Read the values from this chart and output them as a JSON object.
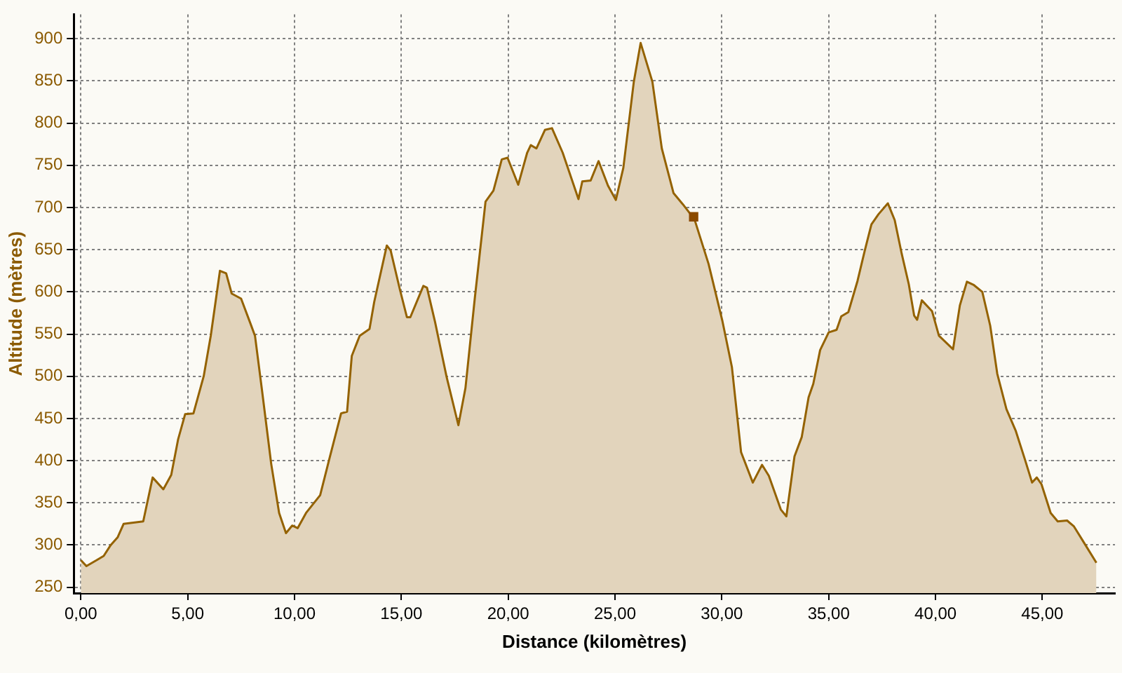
{
  "chart_data": {
    "type": "area",
    "xlabel": "Distance (kilomètres)",
    "ylabel": "Altitude (mètres)",
    "xlim": [
      -0.33,
      48.4
    ],
    "ylim": [
      243,
      929
    ],
    "xticks": [
      {
        "value": 0,
        "label": "0,00"
      },
      {
        "value": 5,
        "label": "5,00"
      },
      {
        "value": 10,
        "label": "10,00"
      },
      {
        "value": 15,
        "label": "15,00"
      },
      {
        "value": 20,
        "label": "20,00"
      },
      {
        "value": 25,
        "label": "25,00"
      },
      {
        "value": 30,
        "label": "30,00"
      },
      {
        "value": 35,
        "label": "35,00"
      },
      {
        "value": 40,
        "label": "40,00"
      },
      {
        "value": 45,
        "label": "45,00"
      }
    ],
    "yticks": [
      250,
      300,
      350,
      400,
      450,
      500,
      550,
      600,
      650,
      700,
      750,
      800,
      850,
      900
    ],
    "grid": true,
    "legend": false,
    "series": [
      {
        "color": "#946200",
        "marker": "none",
        "x": [
          0,
          0.26,
          0.74,
          1.07,
          1.4,
          1.72,
          2.0,
          2.92,
          3.36,
          3.86,
          4.23,
          4.55,
          4.88,
          5.27,
          5.75,
          6.08,
          6.51,
          6.8,
          7.06,
          7.5,
          7.93,
          8.15,
          8.47,
          8.91,
          9.28,
          9.6,
          9.89,
          10.15,
          10.54,
          11.2,
          11.63,
          12.18,
          12.46,
          12.68,
          13.05,
          13.51,
          13.73,
          14.32,
          14.5,
          14.93,
          15.26,
          15.42,
          16.03,
          16.2,
          16.58,
          17.12,
          17.67,
          18.0,
          18.44,
          18.94,
          19.31,
          19.7,
          19.97,
          20.47,
          20.89,
          21.06,
          21.32,
          21.72,
          22.05,
          22.55,
          23.29,
          23.47,
          23.86,
          24.23,
          24.67,
          25.04,
          25.39,
          25.88,
          26.2,
          26.75,
          27.19,
          27.74,
          28.17,
          28.72,
          29.38,
          30.03,
          30.47,
          30.9,
          31.45,
          31.88,
          32.2,
          32.76,
          33.02,
          33.4,
          33.74,
          34.06,
          34.28,
          34.6,
          35.0,
          35.37,
          35.59,
          35.92,
          36.35,
          36.68,
          37.0,
          37.33,
          37.77,
          38.09,
          38.42,
          38.75,
          39.0,
          39.14,
          39.36,
          39.84,
          40.16,
          40.82,
          41.14,
          41.47,
          41.8,
          42.19,
          42.56,
          42.89,
          43.32,
          43.76,
          44.19,
          44.52,
          44.74,
          44.96,
          45.39,
          45.72,
          46.16,
          46.48,
          46.92,
          47.53
        ],
        "values": [
          282,
          275,
          282,
          287,
          300,
          309,
          325,
          328,
          380,
          366,
          383,
          425,
          455,
          456,
          500,
          548,
          625,
          622,
          598,
          592,
          563,
          548,
          485,
          396,
          338,
          314,
          323,
          320,
          338,
          359,
          402,
          456,
          458,
          524,
          548,
          556,
          588,
          655,
          649,
          603,
          570,
          570,
          607,
          605,
          564,
          499,
          442,
          486,
          593,
          707,
          720,
          757,
          759,
          727,
          765,
          774,
          770,
          792,
          794,
          765,
          710,
          731,
          732,
          755,
          726,
          709,
          747,
          849,
          895,
          849,
          770,
          717,
          704,
          686,
          633,
          565,
          511,
          410,
          374,
          395,
          382,
          342,
          334,
          405,
          428,
          475,
          491,
          531,
          552,
          555,
          571,
          576,
          613,
          648,
          680,
          692,
          705,
          685,
          645,
          609,
          572,
          567,
          590,
          577,
          548,
          532,
          584,
          612,
          608,
          600,
          560,
          503,
          461,
          435,
          401,
          374,
          380,
          372,
          338,
          328,
          329,
          322,
          304,
          279
        ]
      },
      {
        "type": "scatter",
        "color": "#8b4a00",
        "marker": "square",
        "x": [
          28.68
        ],
        "values": [
          689
        ]
      }
    ]
  }
}
